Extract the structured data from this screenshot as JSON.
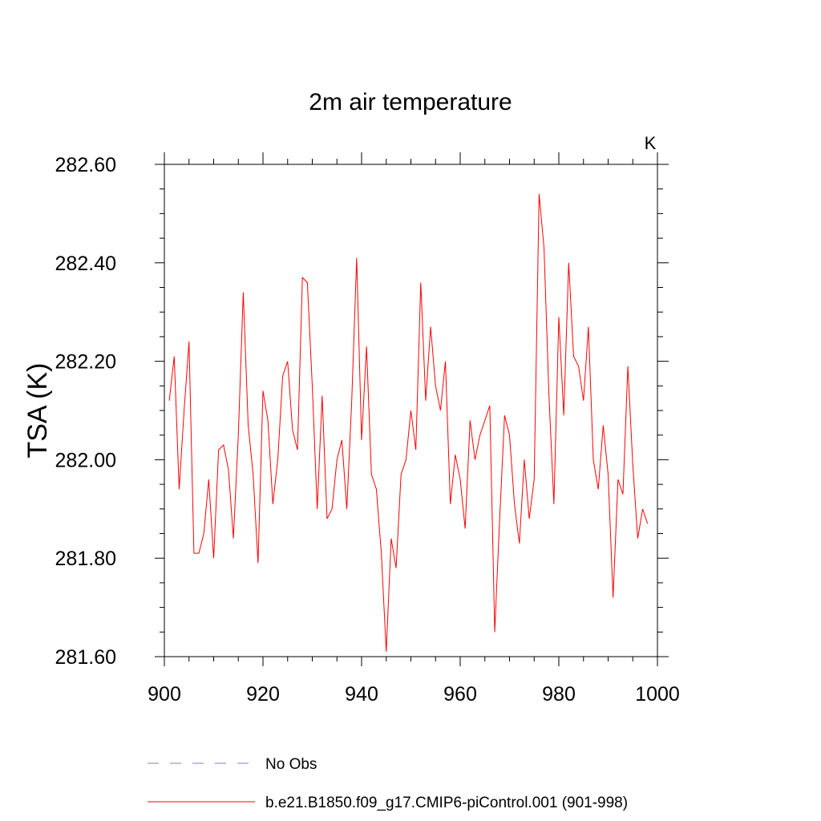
{
  "chart_data": {
    "type": "line",
    "title": "2m air temperature",
    "units_label": "K",
    "xlabel": "",
    "ylabel": "TSA  (K)",
    "xlim": [
      900,
      1000
    ],
    "ylim": [
      281.6,
      282.6
    ],
    "x_ticks": [
      900,
      920,
      940,
      960,
      980,
      1000
    ],
    "x_tick_labels": [
      "900",
      "920",
      "940",
      "960",
      "980",
      "1000"
    ],
    "y_ticks": [
      281.6,
      281.8,
      282.0,
      282.2,
      282.4,
      282.6
    ],
    "y_tick_labels": [
      "281.60",
      "281.80",
      "282.00",
      "282.20",
      "282.40",
      "282.60"
    ],
    "legend": [
      {
        "label": "No Obs",
        "color": "#8080c0",
        "style": "dashed"
      },
      {
        "label": "b.e21.B1850.f09_g17.CMIP6-piControl.001 (901-998)",
        "color": "#ff0000",
        "style": "solid"
      }
    ],
    "series": [
      {
        "name": "b.e21.B1850.f09_g17.CMIP6-piControl.001 (901-998)",
        "color": "#ff0000",
        "x": [
          901,
          902,
          903,
          904,
          905,
          906,
          907,
          908,
          909,
          910,
          911,
          912,
          913,
          914,
          915,
          916,
          917,
          918,
          919,
          920,
          921,
          922,
          923,
          924,
          925,
          926,
          927,
          928,
          929,
          930,
          931,
          932,
          933,
          934,
          935,
          936,
          937,
          938,
          939,
          940,
          941,
          942,
          943,
          944,
          945,
          946,
          947,
          948,
          949,
          950,
          951,
          952,
          953,
          954,
          955,
          956,
          957,
          958,
          959,
          960,
          961,
          962,
          963,
          964,
          965,
          966,
          967,
          968,
          969,
          970,
          971,
          972,
          973,
          974,
          975,
          976,
          977,
          978,
          979,
          980,
          981,
          982,
          983,
          984,
          985,
          986,
          987,
          988,
          989,
          990,
          991,
          992,
          993,
          994,
          995,
          996,
          997,
          998
        ],
        "values": [
          282.12,
          282.21,
          281.94,
          282.1,
          282.24,
          281.81,
          281.81,
          281.85,
          281.96,
          281.8,
          282.02,
          282.03,
          281.98,
          281.84,
          282.05,
          282.34,
          282.07,
          281.97,
          281.79,
          282.14,
          282.08,
          281.91,
          282.0,
          282.17,
          282.2,
          282.06,
          282.02,
          282.37,
          282.36,
          282.15,
          281.9,
          282.13,
          281.88,
          281.9,
          282.0,
          282.04,
          281.9,
          282.12,
          282.41,
          282.04,
          282.23,
          281.97,
          281.94,
          281.81,
          281.61,
          281.84,
          281.78,
          281.97,
          282.0,
          282.1,
          282.02,
          282.36,
          282.12,
          282.27,
          282.15,
          282.1,
          282.2,
          281.91,
          282.01,
          281.96,
          281.86,
          282.08,
          282.0,
          282.05,
          282.08,
          282.11,
          281.65,
          281.88,
          282.09,
          282.05,
          281.91,
          281.83,
          282.0,
          281.88,
          281.96,
          282.54,
          282.43,
          282.13,
          281.91,
          282.29,
          282.09,
          282.4,
          282.21,
          282.19,
          282.12,
          282.27,
          282.0,
          281.94,
          282.07,
          281.97,
          281.72,
          281.96,
          281.93,
          282.19,
          281.99,
          281.84,
          281.9,
          281.87
        ]
      }
    ]
  }
}
